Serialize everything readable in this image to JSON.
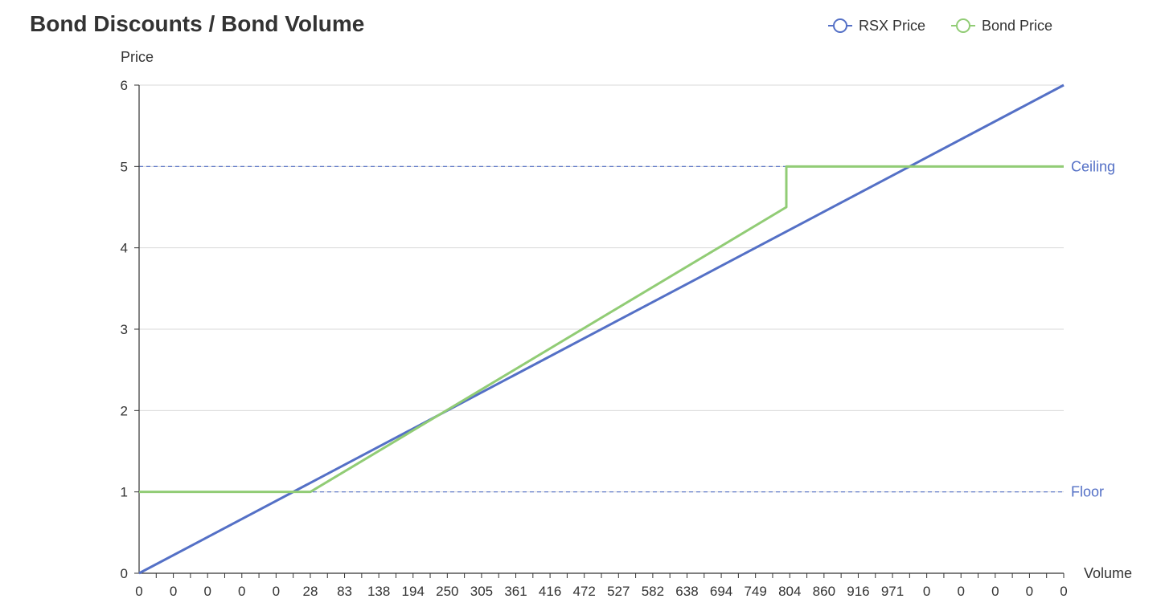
{
  "chart_data": {
    "type": "line",
    "title": "Bond Discounts / Bond Volume",
    "xlabel": "Volume",
    "ylabel": "Price",
    "ylim": [
      0,
      6
    ],
    "yticks": [
      0,
      1,
      2,
      3,
      4,
      5,
      6
    ],
    "x_tick_labels": [
      "0",
      "0",
      "0",
      "0",
      "0",
      "28",
      "83",
      "138",
      "194",
      "250",
      "305",
      "361",
      "416",
      "472",
      "527",
      "582",
      "638",
      "694",
      "749",
      "804",
      "860",
      "916",
      "971",
      "0",
      "0",
      "0",
      "0",
      "0"
    ],
    "grid": true,
    "legend_position": "top-right",
    "series": [
      {
        "name": "RSX Price",
        "color": "#5470c6",
        "points": [
          [
            0,
            0
          ],
          [
            27,
            6
          ]
        ]
      },
      {
        "name": "Bond Price",
        "color": "#91cc75",
        "points": [
          [
            0,
            1
          ],
          [
            5,
            1
          ],
          [
            18.9,
            4.5
          ],
          [
            18.9,
            5
          ],
          [
            27,
            5
          ]
        ]
      }
    ],
    "mark_lines": [
      {
        "name": "Ceiling",
        "value": 5,
        "color": "#5470c6"
      },
      {
        "name": "Floor",
        "value": 1,
        "color": "#5470c6"
      }
    ]
  }
}
